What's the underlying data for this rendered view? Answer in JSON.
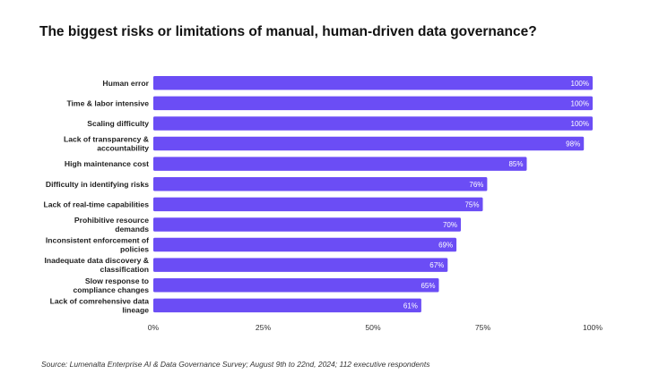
{
  "chart_data": {
    "type": "bar",
    "orientation": "horizontal",
    "title": "The biggest risks or limitations of manual, human-driven data governance?",
    "categories": [
      "Human error",
      "Time & labor intensive",
      "Scaling difficulty",
      "Lack of transparency & accountability",
      "High maintenance cost",
      "Difficulty in identifying risks",
      "Lack of real-time capabilities",
      "Prohibitive resource demands",
      "Inconsistent enforcement of policies",
      "Inadequate data discovery & classification",
      "Slow response to compliance changes",
      "Lack of comrehensive data lineage"
    ],
    "category_lines": [
      [
        "Human error"
      ],
      [
        "Time & labor intensive"
      ],
      [
        "Scaling difficulty"
      ],
      [
        "Lack of transparency &",
        "accountability"
      ],
      [
        "High maintenance cost"
      ],
      [
        "Difficulty in identifying risks"
      ],
      [
        "Lack of real-time capabilities"
      ],
      [
        "Prohibitive resource",
        "demands"
      ],
      [
        "Inconsistent enforcement of",
        "policies"
      ],
      [
        "Inadequate data discovery &",
        "classification"
      ],
      [
        "Slow response to",
        "compliance changes"
      ],
      [
        "Lack of comrehensive data",
        "lineage"
      ]
    ],
    "values": [
      100,
      100,
      100,
      98,
      85,
      76,
      75,
      70,
      69,
      67,
      65,
      61
    ],
    "value_labels": [
      "100%",
      "100%",
      "100%",
      "98%",
      "85%",
      "76%",
      "75%",
      "70%",
      "69%",
      "67%",
      "65%",
      "61%"
    ],
    "xlim": [
      0,
      100
    ],
    "xticks": [
      0,
      25,
      50,
      75,
      100
    ],
    "xtick_labels": [
      "0%",
      "25%",
      "50%",
      "75%",
      "100%"
    ],
    "xlabel": "",
    "ylabel": "",
    "grid": false,
    "bar_color": "#6b4df5"
  },
  "source": "Source: Lumenalta Enterprise AI & Data Governance Survey; August 9th to 22nd, 2024; 112 executive respondents"
}
